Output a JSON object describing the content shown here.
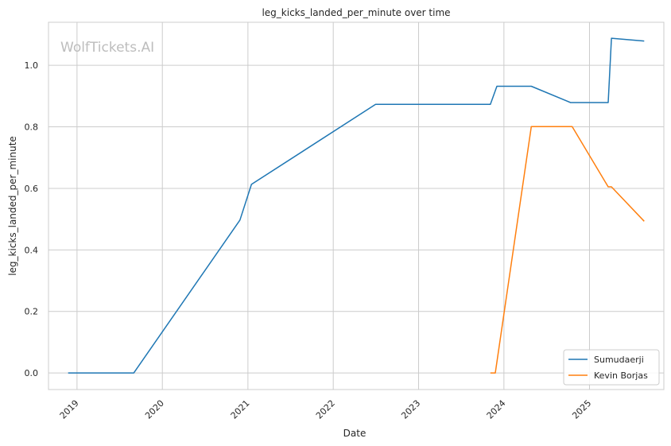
{
  "watermark": "WolfTickets.AI",
  "chart_data": {
    "type": "line",
    "title": "leg_kicks_landed_per_minute over time",
    "xlabel": "Date",
    "ylabel": "leg_kicks_landed_per_minute",
    "x_ticks": [
      "2019-01-01",
      "2020-01-01",
      "2021-01-01",
      "2022-01-01",
      "2023-01-01",
      "2024-01-01",
      "2025-01-01"
    ],
    "x_tick_labels": [
      "2019",
      "2020",
      "2021",
      "2022",
      "2023",
      "2024",
      "2025"
    ],
    "y_ticks": [
      0.0,
      0.2,
      0.4,
      0.6,
      0.8,
      1.0
    ],
    "y_tick_labels": [
      "0.0",
      "0.2",
      "0.4",
      "0.6",
      "0.8",
      "1.0"
    ],
    "xlim": [
      "2018-09-01",
      "2025-11-15"
    ],
    "ylim": [
      -0.054,
      1.14
    ],
    "grid": true,
    "legend_position": "lower-right",
    "series": [
      {
        "name": "Sumudaerji",
        "color": "#1f77b4",
        "points": [
          {
            "x": "2018-11-24",
            "y": 0.0
          },
          {
            "x": "2019-09-01",
            "y": 0.0
          },
          {
            "x": "2020-11-28",
            "y": 0.497
          },
          {
            "x": "2021-01-16",
            "y": 0.613
          },
          {
            "x": "2022-07-01",
            "y": 0.873
          },
          {
            "x": "2023-11-04",
            "y": 0.873
          },
          {
            "x": "2023-12-02",
            "y": 0.932
          },
          {
            "x": "2024-04-27",
            "y": 0.932
          },
          {
            "x": "2024-10-12",
            "y": 0.879
          },
          {
            "x": "2025-03-22",
            "y": 0.879
          },
          {
            "x": "2025-04-05",
            "y": 1.088
          },
          {
            "x": "2025-08-23",
            "y": 1.079
          }
        ]
      },
      {
        "name": "Kevin Borjas",
        "color": "#ff7f0e",
        "points": [
          {
            "x": "2023-11-04",
            "y": 0.0
          },
          {
            "x": "2023-11-25",
            "y": 0.0
          },
          {
            "x": "2024-04-27",
            "y": 0.801
          },
          {
            "x": "2024-10-19",
            "y": 0.801
          },
          {
            "x": "2025-03-22",
            "y": 0.605
          },
          {
            "x": "2025-04-05",
            "y": 0.605
          },
          {
            "x": "2025-08-23",
            "y": 0.493
          }
        ]
      }
    ]
  }
}
